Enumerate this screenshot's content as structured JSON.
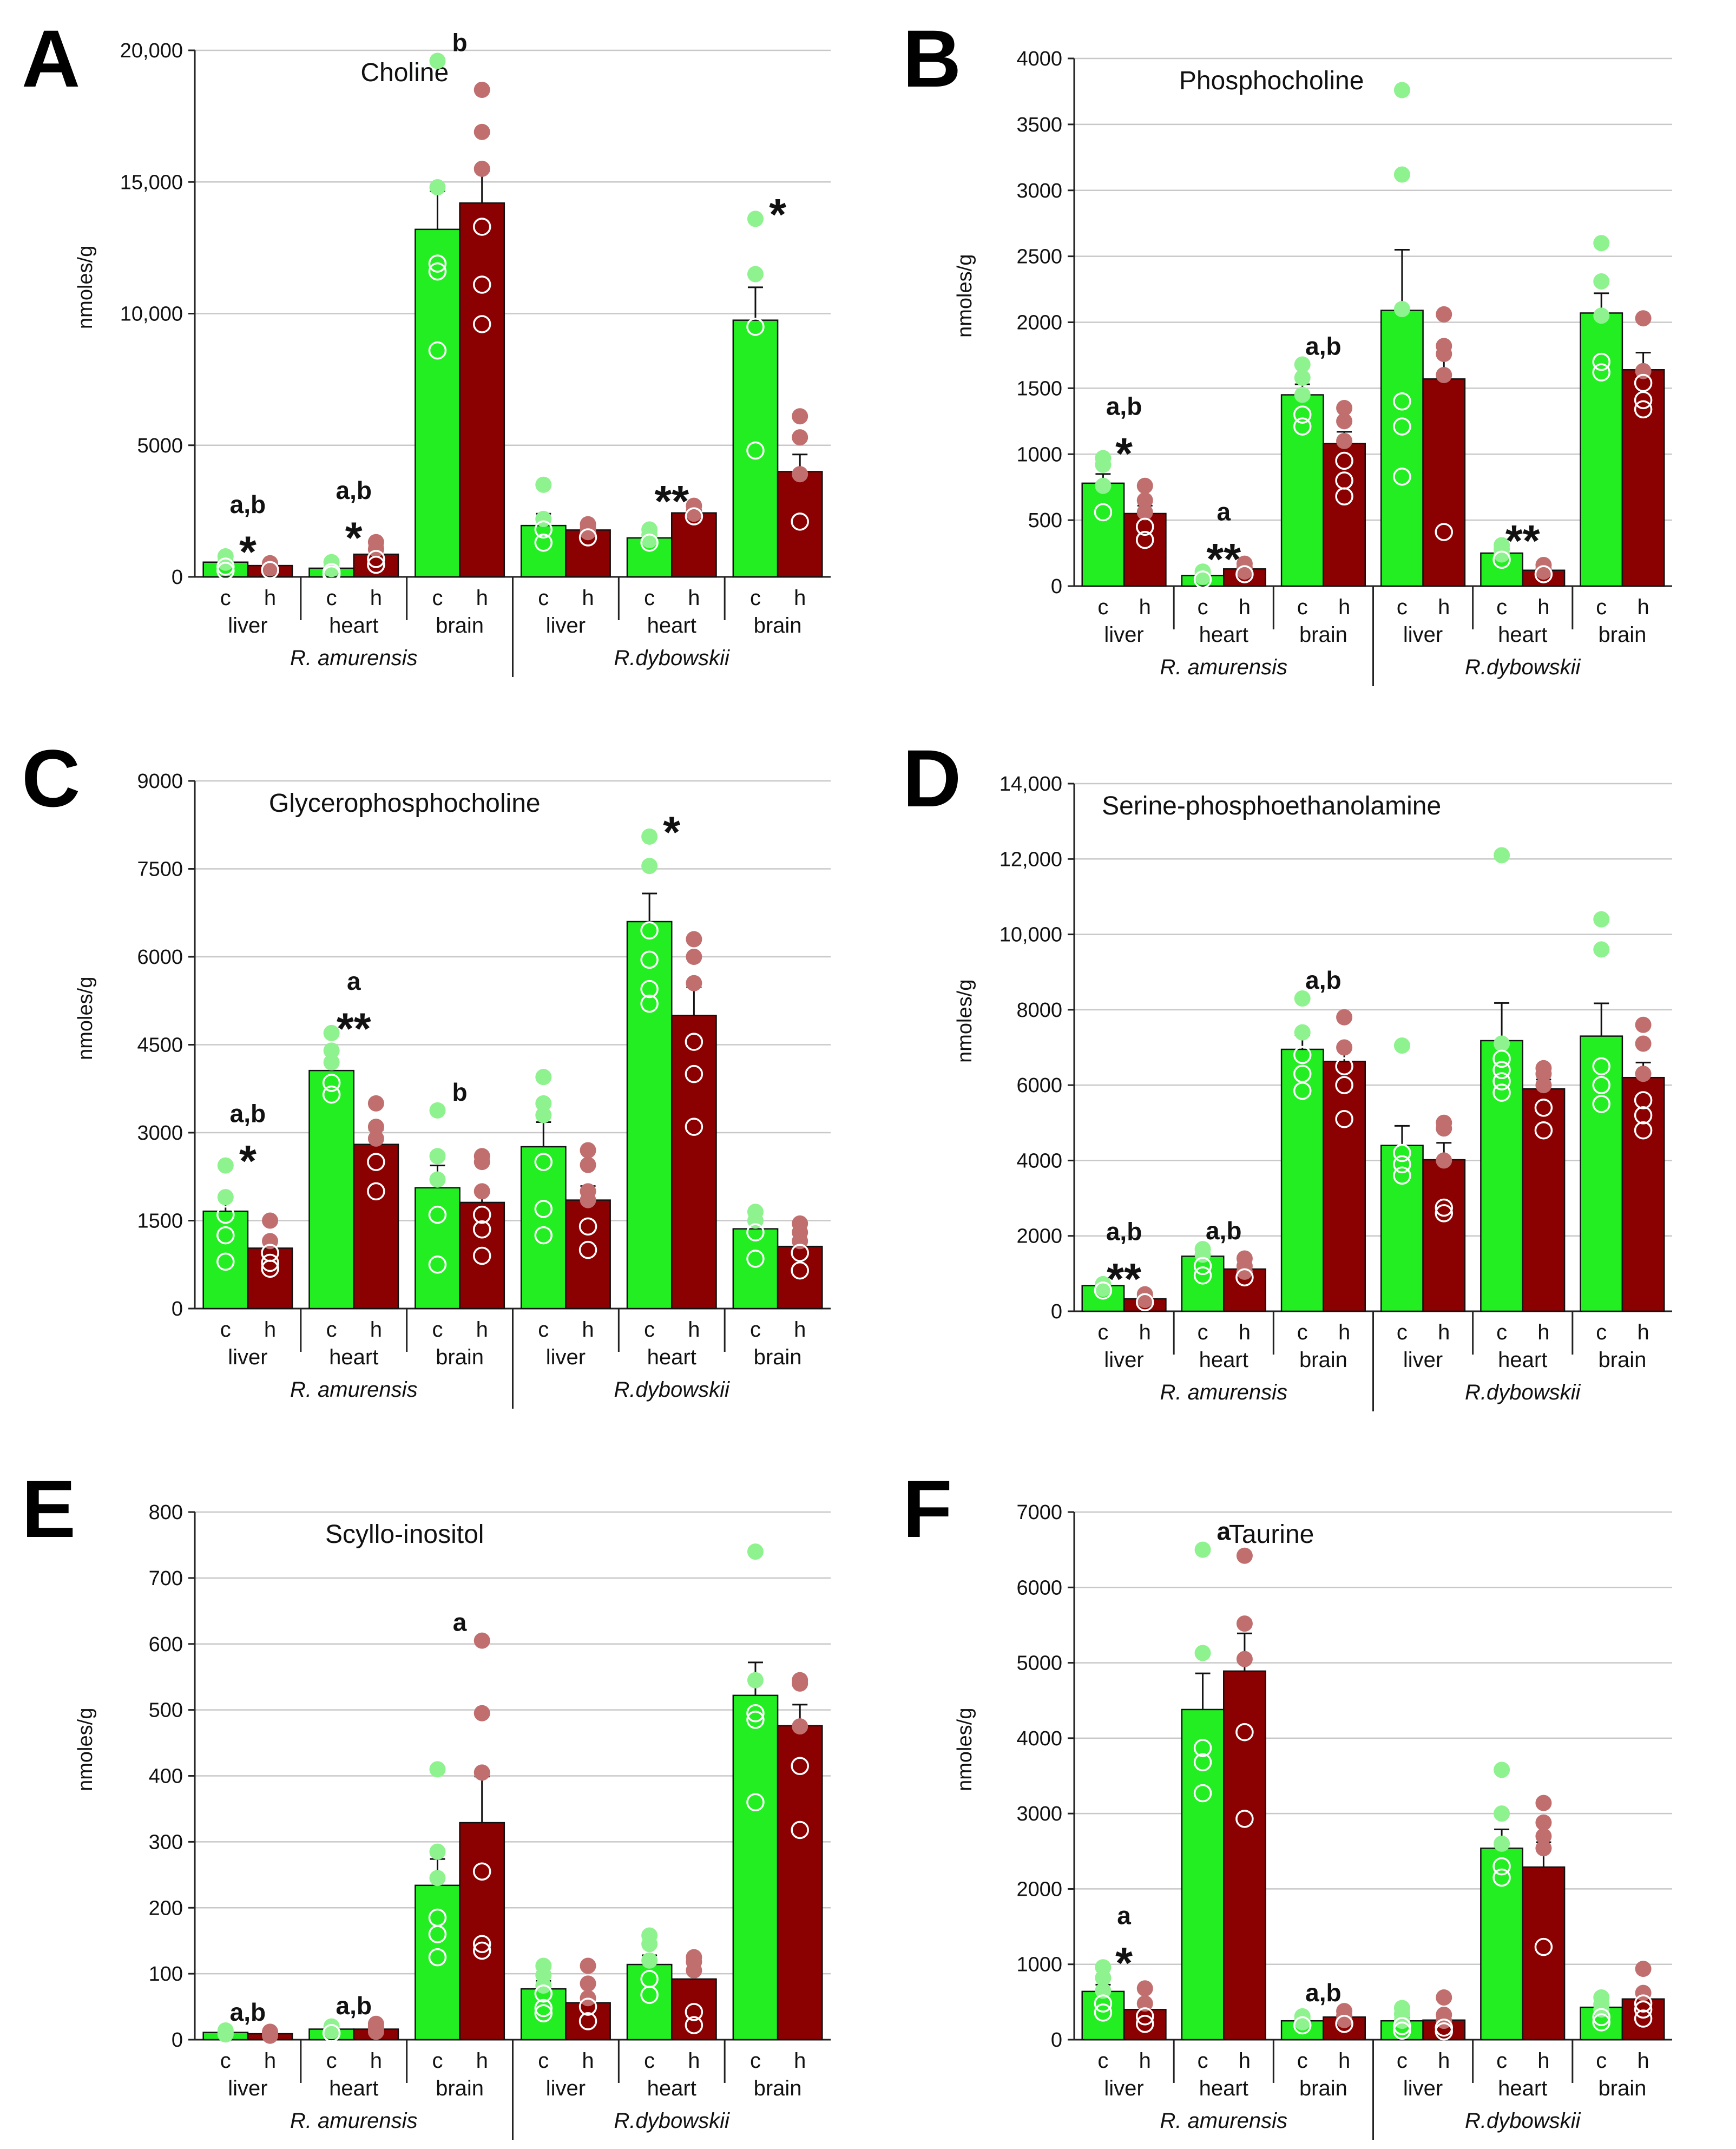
{
  "colors": {
    "control": "#22ee22",
    "hypoxia": "#8b0000",
    "control_dot": "#8ef28e",
    "hypoxia_dot": "#c06e6e"
  },
  "chart_data": [
    {
      "panel": "A",
      "title": "Choline",
      "type": "bar",
      "ylabel": "nmoles/g",
      "ylim": [
        0,
        20000
      ],
      "yticks": [
        0,
        5000,
        10000,
        15000,
        20000
      ],
      "ytick_labels": [
        "0",
        "5000",
        "10,000",
        "15,000",
        "20,000"
      ],
      "groups": [
        "liver",
        "heart",
        "brain",
        "liver",
        "heart",
        "brain"
      ],
      "conditions": [
        "c",
        "h"
      ],
      "species": [
        "R. amurensis",
        "R.dybowskii"
      ],
      "values": [
        [
          560,
          430
        ],
        [
          330,
          860
        ],
        [
          13200,
          14200
        ],
        [
          1950,
          1780
        ],
        [
          1480,
          2430
        ],
        [
          9750,
          4000
        ]
      ],
      "errors": [
        [
          120,
          70
        ],
        [
          90,
          300
        ],
        [
          1450,
          1200
        ],
        [
          450,
          200
        ],
        [
          130,
          200
        ],
        [
          1250,
          650
        ]
      ],
      "points": [
        [
          [
            780,
            540,
            390,
            230
          ],
          [
            520,
            440,
            330,
            260
          ]
        ],
        [
          [
            560,
            300,
            180,
            90
          ],
          [
            1320,
            1050,
            680,
            460
          ]
        ],
        [
          [
            19600,
            14800,
            11900,
            11600,
            8600
          ],
          [
            18500,
            16900,
            15500,
            13300,
            11100,
            9600
          ]
        ],
        [
          [
            3500,
            2200,
            1800,
            1300
          ],
          [
            2000,
            1850,
            1700,
            1500
          ]
        ],
        [
          [
            1800,
            1600,
            1400,
            1300
          ],
          [
            2700,
            2500,
            2400,
            2300
          ]
        ],
        [
          [
            13600,
            11500,
            9500,
            4800
          ],
          [
            6100,
            5300,
            3900,
            2100
          ]
        ]
      ],
      "annotations": [
        {
          "group": 0,
          "stat": "a,b",
          "sig": "*"
        },
        {
          "group": 1,
          "stat": "a,b",
          "sig": "*"
        },
        {
          "group": 2,
          "stat": "b",
          "sig": ""
        },
        {
          "group": 4,
          "stat": "",
          "sig": "**"
        },
        {
          "group": 5,
          "stat": "",
          "sig": "*"
        }
      ]
    },
    {
      "panel": "B",
      "title": "Phosphocholine",
      "type": "bar",
      "ylabel": "nmoles/g",
      "ylim": [
        0,
        4000
      ],
      "yticks": [
        0,
        500,
        1000,
        1500,
        2000,
        2500,
        3000,
        3500,
        4000
      ],
      "ytick_labels": [
        "0",
        "500",
        "1000",
        "1500",
        "2000",
        "2500",
        "3000",
        "3500",
        "4000"
      ],
      "groups": [
        "liver",
        "heart",
        "brain",
        "liver",
        "heart",
        "brain"
      ],
      "conditions": [
        "c",
        "h"
      ],
      "species": [
        "R. amurensis",
        "R.dybowskii"
      ],
      "values": [
        [
          780,
          550
        ],
        [
          80,
          130
        ],
        [
          1450,
          1080
        ],
        [
          2090,
          1570
        ],
        [
          250,
          120
        ],
        [
          2070,
          1640
        ]
      ],
      "errors": [
        [
          70,
          60
        ],
        [
          20,
          30
        ],
        [
          80,
          90
        ],
        [
          460,
          200
        ],
        [
          30,
          30
        ],
        [
          150,
          130
        ]
      ],
      "points": [
        [
          [
            970,
            920,
            760,
            560
          ],
          [
            760,
            650,
            560,
            450,
            350
          ]
        ],
        [
          [
            110,
            90,
            70,
            50
          ],
          [
            170,
            140,
            110,
            90
          ]
        ],
        [
          [
            1680,
            1580,
            1450,
            1300,
            1210
          ],
          [
            1350,
            1250,
            1100,
            950,
            800,
            680
          ]
        ],
        [
          [
            3760,
            3120,
            2100,
            1400,
            1210,
            830
          ],
          [
            2060,
            1820,
            1760,
            1600,
            410
          ]
        ],
        [
          [
            310,
            280,
            240,
            200
          ],
          [
            160,
            130,
            110,
            90
          ]
        ],
        [
          [
            2600,
            2310,
            2050,
            1700,
            1620
          ],
          [
            2030,
            1630,
            1540,
            1410,
            1340
          ]
        ]
      ],
      "annotations": [
        {
          "group": 0,
          "stat": "a,b",
          "sig": "*"
        },
        {
          "group": 1,
          "stat": "a",
          "sig": "**"
        },
        {
          "group": 2,
          "stat": "a,b",
          "sig": ""
        },
        {
          "group": 4,
          "stat": "",
          "sig": "**"
        }
      ]
    },
    {
      "panel": "C",
      "title": "Glycerophosphocholine",
      "type": "bar",
      "ylabel": "nmoles/g",
      "ylim": [
        0,
        9000
      ],
      "yticks": [
        0,
        1500,
        3000,
        4500,
        6000,
        7500,
        9000
      ],
      "ytick_labels": [
        "0",
        "1500",
        "3000",
        "4500",
        "6000",
        "7500",
        "9000"
      ],
      "groups": [
        "liver",
        "heart",
        "brain",
        "liver",
        "heart",
        "brain"
      ],
      "conditions": [
        "c",
        "h"
      ],
      "species": [
        "R. amurensis",
        "R.dybowskii"
      ],
      "values": [
        [
          1660,
          1030
        ],
        [
          4060,
          2800
        ],
        [
          2060,
          1810
        ],
        [
          2760,
          1850
        ],
        [
          6600,
          5000
        ],
        [
          1360,
          1060
        ]
      ],
      "errors": [
        [
          230,
          120
        ],
        [
          150,
          250
        ],
        [
          380,
          200
        ],
        [
          420,
          240
        ],
        [
          480,
          480
        ],
        [
          100,
          100
        ]
      ],
      "points": [
        [
          [
            2440,
            1900,
            1600,
            1250,
            800
          ],
          [
            1500,
            1150,
            950,
            780,
            680
          ]
        ],
        [
          [
            4700,
            4400,
            4200,
            3850,
            3650
          ],
          [
            3500,
            3100,
            2900,
            2500,
            2000
          ]
        ],
        [
          [
            3380,
            2600,
            2200,
            1600,
            750
          ],
          [
            2600,
            2500,
            2000,
            1600,
            1350,
            900
          ]
        ],
        [
          [
            3950,
            3500,
            3300,
            2500,
            1700,
            1250
          ],
          [
            2700,
            2450,
            2000,
            1850,
            1400,
            1000
          ]
        ],
        [
          [
            8050,
            7550,
            6450,
            5950,
            5450,
            5200
          ],
          [
            6300,
            6000,
            5550,
            4550,
            4000,
            3100
          ]
        ],
        [
          [
            1650,
            1500,
            1300,
            850
          ],
          [
            1450,
            1300,
            1150,
            950,
            650
          ]
        ]
      ],
      "annotations": [
        {
          "group": 0,
          "stat": "a,b",
          "sig": "*"
        },
        {
          "group": 1,
          "stat": "a",
          "sig": "**"
        },
        {
          "group": 2,
          "stat": "b",
          "sig": ""
        },
        {
          "group": 4,
          "stat": "",
          "sig": "*"
        }
      ]
    },
    {
      "panel": "D",
      "title": "Serine-phosphoethanolamine",
      "type": "bar",
      "ylabel": "nmoles/g",
      "ylim": [
        0,
        14000
      ],
      "yticks": [
        0,
        2000,
        4000,
        6000,
        8000,
        10000,
        12000,
        14000
      ],
      "ytick_labels": [
        "0",
        "2000",
        "4000",
        "6000",
        "8000",
        "10,000",
        "12,000",
        "14,000"
      ],
      "groups": [
        "liver",
        "heart",
        "brain",
        "liver",
        "heart",
        "brain"
      ],
      "conditions": [
        "c",
        "h"
      ],
      "species": [
        "R. amurensis",
        "R.dybowskii"
      ],
      "values": [
        [
          680,
          330
        ],
        [
          1460,
          1120
        ],
        [
          6950,
          6630
        ],
        [
          4400,
          4020
        ],
        [
          7180,
          5900
        ],
        [
          7300,
          6200
        ]
      ],
      "errors": [
        [
          60,
          50
        ],
        [
          120,
          100
        ],
        [
          380,
          380
        ],
        [
          520,
          450
        ],
        [
          1000,
          250
        ],
        [
          870,
          400
        ]
      ],
      "points": [
        [
          [
            720,
            650,
            600,
            550
          ],
          [
            450,
            360,
            300,
            240
          ]
        ],
        [
          [
            1650,
            1500,
            1200,
            950
          ],
          [
            1400,
            1200,
            1050,
            900
          ]
        ],
        [
          [
            8300,
            7400,
            6800,
            6300,
            5850
          ],
          [
            7800,
            7000,
            6500,
            6000,
            5100
          ]
        ],
        [
          [
            7050,
            4200,
            3900,
            3600
          ],
          [
            5000,
            4850,
            4000,
            2750,
            2600
          ]
        ],
        [
          [
            12100,
            7100,
            6700,
            6400,
            6100,
            5800
          ],
          [
            6450,
            6300,
            6000,
            5400,
            4800
          ]
        ],
        [
          [
            10400,
            9600,
            6500,
            6000,
            5500
          ],
          [
            7600,
            7100,
            6300,
            5600,
            5200,
            4800
          ]
        ]
      ],
      "annotations": [
        {
          "group": 0,
          "stat": "a,b",
          "sig": "**"
        },
        {
          "group": 1,
          "stat": "a,b",
          "sig": ""
        },
        {
          "group": 2,
          "stat": "a,b",
          "sig": ""
        }
      ]
    },
    {
      "panel": "E",
      "title": "Scyllo-inositol",
      "type": "bar",
      "ylabel": "nmoles/g",
      "ylim": [
        0,
        800
      ],
      "yticks": [
        0,
        100,
        200,
        300,
        400,
        500,
        600,
        700,
        800
      ],
      "ytick_labels": [
        "0",
        "100",
        "200",
        "300",
        "400",
        "500",
        "600",
        "700",
        "800"
      ],
      "groups": [
        "liver",
        "heart",
        "brain",
        "liver",
        "heart",
        "brain"
      ],
      "conditions": [
        "c",
        "h"
      ],
      "species": [
        "R. amurensis",
        "R.dybowskii"
      ],
      "values": [
        [
          11,
          9
        ],
        [
          16,
          16
        ],
        [
          234,
          329
        ],
        [
          77,
          56
        ],
        [
          114,
          92
        ],
        [
          522,
          476
        ]
      ],
      "errors": [
        [
          2,
          2
        ],
        [
          3,
          4
        ],
        [
          40,
          70
        ],
        [
          12,
          10
        ],
        [
          14,
          25
        ],
        [
          50,
          32
        ]
      ],
      "points": [
        [
          [
            14,
            12,
            10,
            8
          ],
          [
            12,
            10,
            8,
            6
          ]
        ],
        [
          [
            20,
            16,
            13,
            10
          ],
          [
            24,
            20,
            16,
            12
          ]
        ],
        [
          [
            410,
            285,
            245,
            185,
            160,
            125
          ],
          [
            605,
            495,
            405,
            255,
            145,
            135
          ]
        ],
        [
          [
            112,
            98,
            82,
            70,
            48,
            40
          ],
          [
            112,
            85,
            63,
            50,
            28
          ]
        ],
        [
          [
            158,
            145,
            120,
            92,
            68
          ],
          [
            125,
            118,
            105,
            42,
            22
          ]
        ],
        [
          [
            740,
            545,
            495,
            485,
            360
          ],
          [
            545,
            540,
            475,
            415,
            318
          ]
        ]
      ],
      "annotations": [
        {
          "group": 0,
          "stat": "a,b",
          "sig": ""
        },
        {
          "group": 1,
          "stat": "a,b",
          "sig": ""
        },
        {
          "group": 2,
          "stat": "a",
          "sig": ""
        }
      ]
    },
    {
      "panel": "F",
      "title": "Taurine",
      "type": "bar",
      "ylabel": "nmoles/g",
      "ylim": [
        0,
        7000
      ],
      "yticks": [
        0,
        1000,
        2000,
        3000,
        4000,
        5000,
        6000,
        7000
      ],
      "ytick_labels": [
        "0",
        "1000",
        "2000",
        "3000",
        "4000",
        "5000",
        "6000",
        "7000"
      ],
      "groups": [
        "liver",
        "heart",
        "brain",
        "liver",
        "heart",
        "brain"
      ],
      "conditions": [
        "c",
        "h"
      ],
      "species": [
        "R. amurensis",
        "R.dybowskii"
      ],
      "values": [
        [
          640,
          400
        ],
        [
          4380,
          4890
        ],
        [
          250,
          300
        ],
        [
          250,
          260
        ],
        [
          2540,
          2290
        ],
        [
          430,
          540
        ]
      ],
      "errors": [
        [
          90,
          60
        ],
        [
          480,
          500
        ],
        [
          30,
          40
        ],
        [
          40,
          50
        ],
        [
          250,
          330
        ],
        [
          60,
          80
        ]
      ],
      "points": [
        [
          [
            960,
            820,
            650,
            480,
            360
          ],
          [
            680,
            480,
            310,
            210
          ]
        ],
        [
          [
            6500,
            5130,
            3870,
            3680,
            3270
          ],
          [
            6420,
            5520,
            5050,
            4080,
            2930
          ]
        ],
        [
          [
            310,
            270,
            230,
            190
          ],
          [
            380,
            320,
            260,
            210
          ]
        ],
        [
          [
            420,
            340,
            250,
            180,
            120
          ],
          [
            560,
            330,
            250,
            160,
            110
          ]
        ],
        [
          [
            3580,
            3000,
            2600,
            2300,
            2150
          ],
          [
            3140,
            2880,
            2700,
            2540,
            1230
          ]
        ],
        [
          [
            560,
            470,
            400,
            300,
            230
          ],
          [
            940,
            620,
            480,
            400,
            280
          ]
        ]
      ],
      "annotations": [
        {
          "group": 0,
          "stat": "a",
          "sig": "*"
        },
        {
          "group": 1,
          "stat": "a",
          "sig": ""
        },
        {
          "group": 2,
          "stat": "a,b",
          "sig": ""
        }
      ]
    }
  ]
}
